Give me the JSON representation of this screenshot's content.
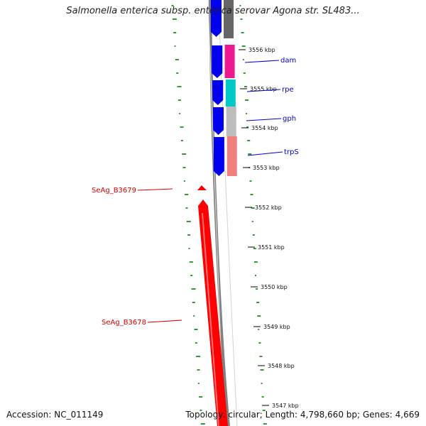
{
  "title": "Salmonella enterica subsp. enterica serovar Agona str. SL483...",
  "footer": {
    "accession": "Accession: NC_011149",
    "topology": "Topology: circular; Length: 4,798,660 bp; Genes: 4,669"
  },
  "ticks": [
    "3556 kbp",
    "3555 kbp",
    "3554 kbp",
    "3553 kbp",
    "3552 kbp",
    "3551 kbp",
    "3550 kbp",
    "3549 kbp",
    "3548 kbp",
    "3547 kbp"
  ],
  "forward_genes": [
    {
      "label": "dam"
    },
    {
      "label": "rpe"
    },
    {
      "label": "gph"
    },
    {
      "label": "trpS"
    }
  ],
  "reverse_genes": [
    {
      "label": "SeAg_B3679"
    },
    {
      "label": "SeAg_B3678"
    }
  ],
  "colors": {
    "forward_gene": "#0000ee",
    "reverse_gene": "#ff0000",
    "backbone": "#808080",
    "gc_marks": "#339933",
    "label_blue": "#0000cc",
    "label_red": "#dd0000",
    "cog": [
      "#666666",
      "#ee1890",
      "#00c8c8",
      "#bdbdbd",
      "#f08080"
    ]
  }
}
